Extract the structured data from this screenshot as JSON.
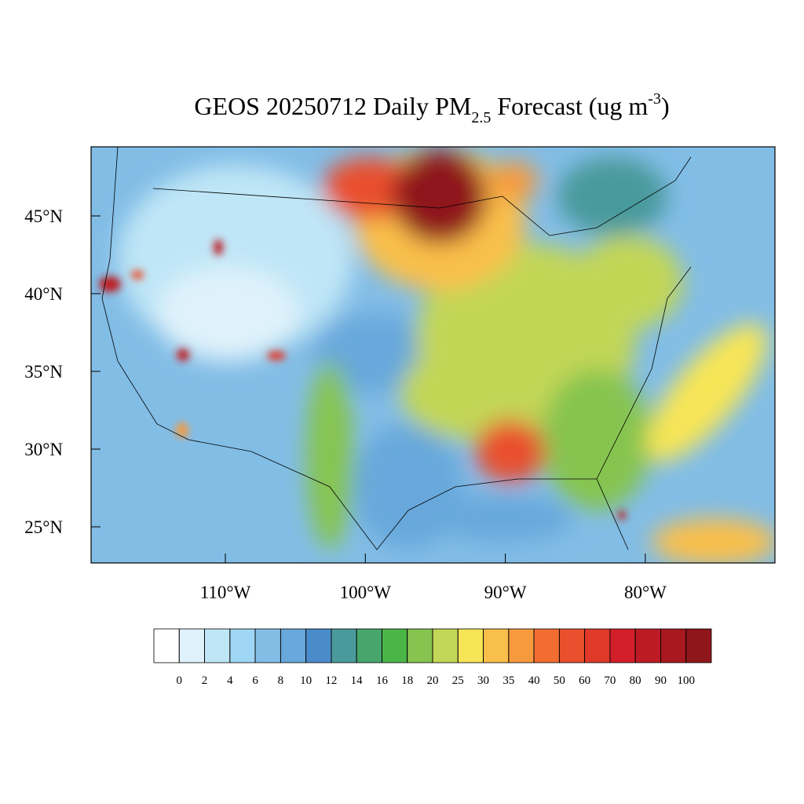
{
  "title": {
    "main": "GEOS 20250712 Daily PM",
    "subscript": "2.5",
    "rest": " Forecast (ug m",
    "superscript": "-3",
    "end": ")"
  },
  "map": {
    "lat_ticks": [
      {
        "value": 45,
        "label": "45°N"
      },
      {
        "value": 40,
        "label": "40°N"
      },
      {
        "value": 35,
        "label": "35°N"
      },
      {
        "value": 30,
        "label": "30°N"
      },
      {
        "value": 25,
        "label": "25°N"
      }
    ],
    "lon_ticks": [
      {
        "value": -110,
        "label": "110°W"
      },
      {
        "value": -100,
        "label": "100°W"
      },
      {
        "value": -90,
        "label": "90°W"
      },
      {
        "value": -80,
        "label": "80°W"
      }
    ]
  },
  "colorbar": {
    "levels": [
      0,
      2,
      4,
      6,
      8,
      10,
      12,
      14,
      16,
      18,
      20,
      25,
      30,
      35,
      40,
      50,
      60,
      70,
      80,
      90,
      100
    ],
    "colors": [
      "#ffffff",
      "#dff2fb",
      "#bfe6f7",
      "#9fd6f3",
      "#82bde6",
      "#68a8dc",
      "#4a8bc9",
      "#4a9a9c",
      "#48a56c",
      "#4bb548",
      "#86c44f",
      "#c2d657",
      "#f6e557",
      "#f9bf4b",
      "#f79a3e",
      "#f26d31",
      "#e9502d",
      "#e0392a",
      "#d31f2a",
      "#bd1b24",
      "#a8181f",
      "#8f161a"
    ]
  }
}
